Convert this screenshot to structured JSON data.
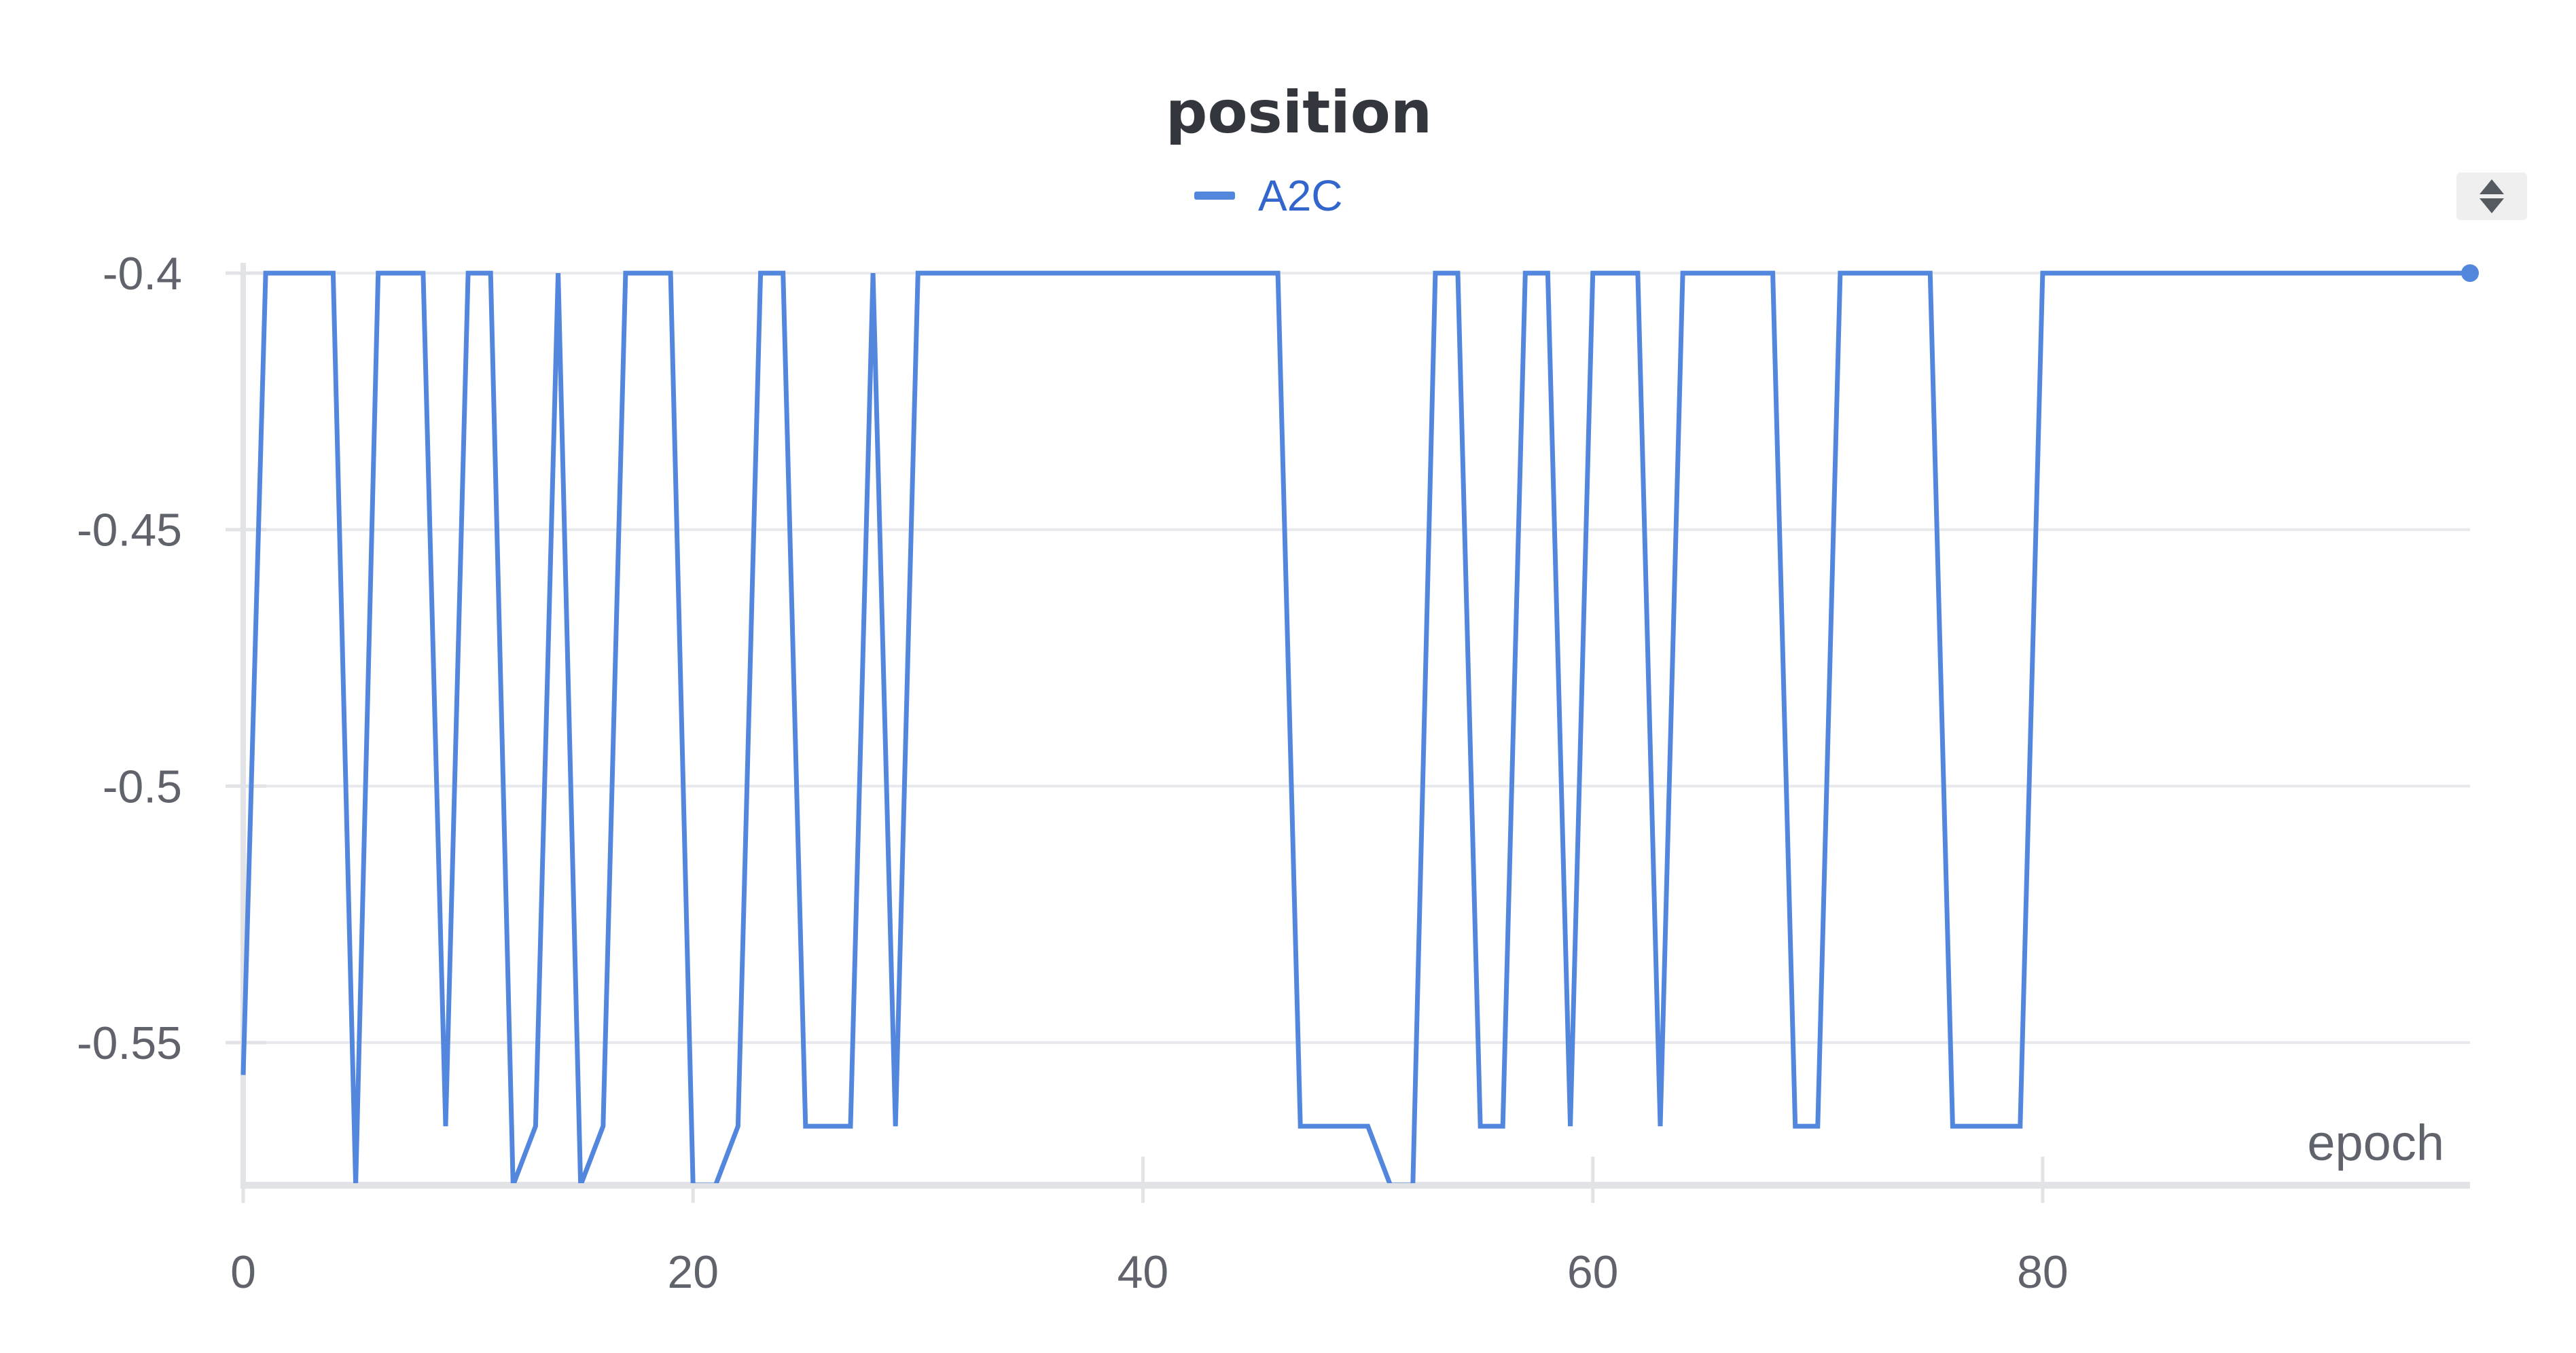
{
  "chart_data": {
    "type": "line",
    "title": "position",
    "xlabel": "epoch",
    "ylabel": "",
    "xlim": [
      0,
      99
    ],
    "ylim": [
      -0.5778,
      -0.398
    ],
    "x_ticks": [
      0,
      20,
      40,
      60,
      80
    ],
    "y_ticks": [
      -0.4,
      -0.45,
      -0.5,
      -0.55
    ],
    "grid": true,
    "legend_placement": "top-center",
    "colors": {
      "series": "#5387dd",
      "legend_text": "#3366cc",
      "grid": "#e8e9ec",
      "axis": "#e2e3e6",
      "sort_control_bg": "#efefef",
      "sort_control_arrows": "#555a61"
    },
    "series": [
      {
        "name": "A2C",
        "x": [
          0,
          1,
          2,
          3,
          4,
          5,
          6,
          7,
          8,
          9,
          10,
          11,
          12,
          13,
          14,
          15,
          16,
          17,
          18,
          19,
          20,
          21,
          22,
          23,
          24,
          25,
          26,
          27,
          28,
          29,
          30,
          31,
          32,
          33,
          34,
          35,
          36,
          37,
          38,
          39,
          40,
          41,
          42,
          43,
          44,
          45,
          46,
          47,
          48,
          49,
          50,
          51,
          52,
          53,
          54,
          55,
          56,
          57,
          58,
          59,
          60,
          61,
          62,
          63,
          64,
          65,
          66,
          67,
          68,
          69,
          70,
          71,
          72,
          73,
          74,
          75,
          76,
          77,
          78,
          79,
          80,
          81,
          82,
          83,
          84,
          85,
          86,
          87,
          88,
          89,
          90,
          91,
          92,
          93,
          94,
          95,
          96,
          97,
          98,
          99
        ],
        "values": [
          -0.5563,
          -0.4,
          -0.4,
          -0.4,
          -0.4,
          -0.5778,
          -0.4,
          -0.4,
          -0.4,
          -0.5663,
          -0.4,
          -0.4,
          -0.5778,
          -0.5663,
          -0.4,
          -0.5778,
          -0.5663,
          -0.4,
          -0.4,
          -0.4,
          -0.5778,
          -0.5778,
          -0.5663,
          -0.4,
          -0.4,
          -0.5663,
          -0.5663,
          -0.5663,
          -0.4,
          -0.5663,
          -0.4,
          -0.4,
          -0.4,
          -0.4,
          -0.4,
          -0.4,
          -0.4,
          -0.4,
          -0.4,
          -0.4,
          -0.4,
          -0.4,
          -0.4,
          -0.4,
          -0.4,
          -0.4,
          -0.4,
          -0.5663,
          -0.5663,
          -0.5663,
          -0.5663,
          -0.5778,
          -0.5778,
          -0.4,
          -0.4,
          -0.5663,
          -0.5663,
          -0.4,
          -0.4,
          -0.5663,
          -0.4,
          -0.4,
          -0.4,
          -0.5663,
          -0.4,
          -0.4,
          -0.4,
          -0.4,
          -0.4,
          -0.5663,
          -0.5663,
          -0.4,
          -0.4,
          -0.4,
          -0.4,
          -0.4,
          -0.5663,
          -0.5663,
          -0.5663,
          -0.5663,
          -0.4,
          -0.4,
          -0.4,
          -0.4,
          -0.4,
          -0.4,
          -0.4,
          -0.4,
          -0.4,
          -0.4,
          -0.4,
          -0.4,
          -0.4,
          -0.4,
          -0.4,
          -0.4,
          -0.4,
          -0.4,
          -0.4,
          -0.4
        ]
      }
    ]
  },
  "ui": {
    "sort_control_icon": "sort-up-down-icon"
  }
}
